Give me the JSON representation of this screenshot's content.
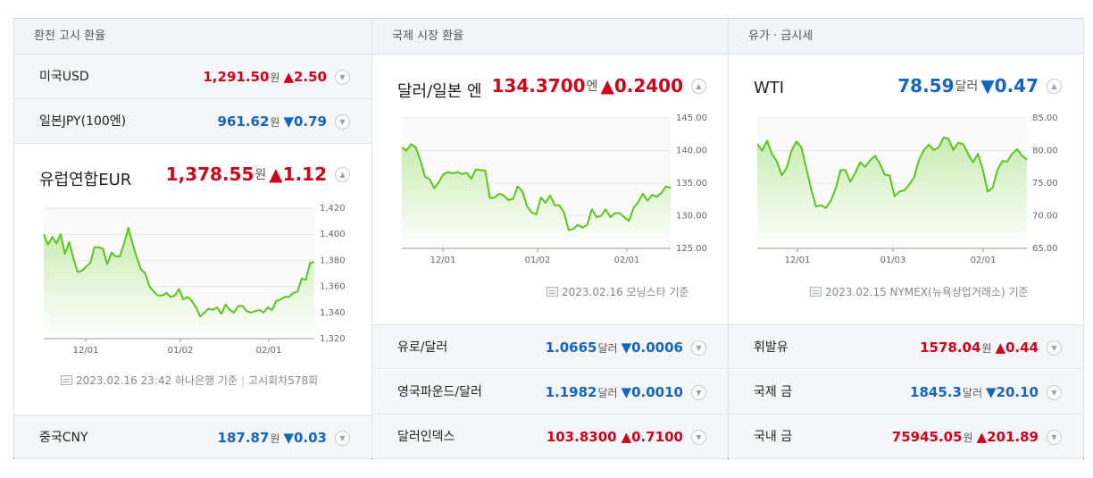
{
  "sections": {
    "exchange": {
      "title": "환전 고시 환율",
      "usd": {
        "name": "미국USD",
        "value": "1,291.50",
        "unit": "원",
        "change": "▲2.50"
      },
      "jpy": {
        "name": "일본JPY(100엔)",
        "value": "961.62",
        "unit": "원",
        "change": "▼0.79"
      },
      "eur": {
        "name": "유럽연합EUR",
        "value": "1,378.55",
        "unit": "원",
        "change": "▲1.12"
      },
      "cny": {
        "name": "중국CNY",
        "value": "187.87",
        "unit": "원",
        "change": "▼0.03"
      },
      "source": {
        "date": "2023.02.16 23:42",
        "provider": "하나은행 기준",
        "round": "고시회차578회"
      }
    },
    "international": {
      "title": "국제 시장 환율",
      "usdjpy": {
        "name": "달러/일본 엔",
        "value": "134.3700",
        "unit": "엔",
        "change": "▲0.2400"
      },
      "eurusd": {
        "name": "유로/달러",
        "value": "1.0665",
        "unit": "달러",
        "change": "▼0.0006"
      },
      "gbpusd": {
        "name": "영국파운드/달러",
        "value": "1.1982",
        "unit": "달러",
        "change": "▼0.0010"
      },
      "dxy": {
        "name": "달러인덱스",
        "value": "103.8300",
        "unit": "",
        "change": "▲0.7100"
      },
      "source": {
        "date": "2023.02.16",
        "provider": "모닝스타 기준"
      }
    },
    "oil_gold": {
      "title": "유가 · 금시세",
      "wti": {
        "name": "WTI",
        "value": "78.59",
        "unit": "달러",
        "change": "▼0.47"
      },
      "gasoline": {
        "name": "휘발유",
        "value": "1578.04",
        "unit": "원",
        "change": "▲0.44"
      },
      "intl_gold": {
        "name": "국제 금",
        "value": "1845.3",
        "unit": "달러",
        "change": "▼20.10"
      },
      "dom_gold": {
        "name": "국내 금",
        "value": "75945.05",
        "unit": "원",
        "change": "▲201.89"
      },
      "source": {
        "date": "2023.02.15",
        "provider": "NYMEX(뉴욕상업거래소) 기준"
      }
    }
  },
  "colors": {
    "up": "#d0021b",
    "down": "#1565c0",
    "line": "#5cc51a",
    "fill_top": "#c7ecb0"
  },
  "toggle_icons": {
    "collapsed": "chevron-down-icon",
    "expanded": "chevron-up-icon"
  },
  "chart_data": [
    {
      "type": "area",
      "xticks": [
        "12/01",
        "01/02",
        "02/01"
      ],
      "yticks": [
        "1,420",
        "1,400",
        "1,380",
        "1,360",
        "1,340",
        "1,320"
      ],
      "ylim": [
        1320,
        1420
      ],
      "values": [
        1400,
        1392,
        1398,
        1393,
        1400,
        1385,
        1394,
        1382,
        1371,
        1372,
        1375,
        1378,
        1390,
        1390,
        1389,
        1377,
        1386,
        1383,
        1383,
        1393,
        1405,
        1393,
        1382,
        1373,
        1370,
        1360,
        1356,
        1353,
        1353,
        1355,
        1352,
        1353,
        1358,
        1350,
        1352,
        1349,
        1344,
        1337,
        1340,
        1343,
        1342,
        1344,
        1339,
        1346,
        1342,
        1340,
        1345,
        1345,
        1341,
        1340,
        1341,
        1342,
        1340,
        1344,
        1342,
        1349,
        1350,
        1352,
        1352,
        1355,
        1356,
        1366,
        1365,
        1378,
        1379
      ]
    },
    {
      "type": "area",
      "xticks": [
        "12/01",
        "01/02",
        "02/01"
      ],
      "yticks": [
        "145.00",
        "140.00",
        "135.00",
        "130.00",
        "125.00"
      ],
      "ylim": [
        125,
        145
      ],
      "values": [
        140.5,
        140,
        141,
        140.5,
        138.5,
        136,
        135.6,
        134.2,
        135.2,
        136.4,
        136.7,
        136.5,
        136.7,
        136.4,
        136.6,
        135.7,
        137.1,
        137,
        136.9,
        132.7,
        132.8,
        133.4,
        133.1,
        132.4,
        132.6,
        134.5,
        133.8,
        131.5,
        130.5,
        130.2,
        132.8,
        132,
        133.1,
        131.6,
        131.6,
        130.5,
        127.8,
        128,
        128.6,
        128.2,
        128.6,
        131,
        129.8,
        130,
        131,
        129.8,
        130.4,
        130.4,
        129.8,
        129.2,
        131.2,
        132.1,
        133.4,
        132.3,
        133.2,
        132.9,
        133.5,
        134.5,
        134.3
      ]
    },
    {
      "type": "area",
      "xticks": [
        "12/01",
        "01/03",
        "02/01"
      ],
      "yticks": [
        "85.00",
        "80.00",
        "75.00",
        "70.00",
        "65.00"
      ],
      "ylim": [
        65,
        85
      ],
      "values": [
        81,
        80,
        81.5,
        79.5,
        78.3,
        76.2,
        77.3,
        80,
        81.4,
        80.5,
        77.3,
        74.1,
        71.4,
        71.6,
        71.2,
        72.3,
        74.2,
        77,
        77,
        75.2,
        76.6,
        78.2,
        77.5,
        78.5,
        79.2,
        78,
        76.3,
        76.2,
        73,
        73.7,
        73.9,
        74.8,
        75.9,
        78.6,
        80.1,
        80.9,
        80.1,
        80.5,
        82,
        81.8,
        80.1,
        81.2,
        81,
        79.5,
        78.2,
        79.5,
        77.1,
        73.7,
        74.3,
        77.1,
        78.4,
        78.3,
        79.5,
        80.2,
        79.2,
        78.6
      ]
    }
  ]
}
